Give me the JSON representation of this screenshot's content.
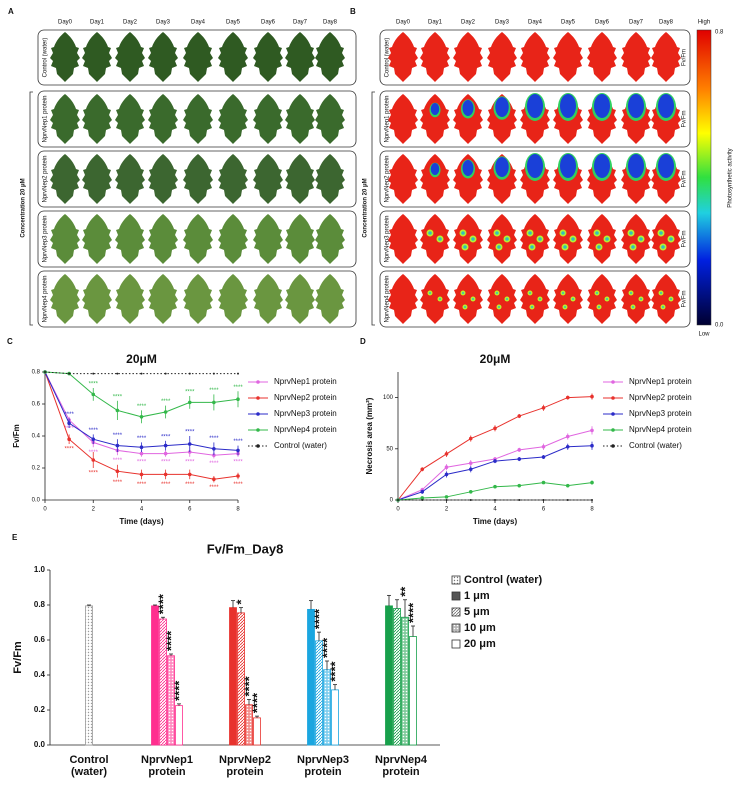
{
  "panels": {
    "A": {
      "label": "A",
      "days": [
        "Day0",
        "Day1",
        "Day2",
        "Day3",
        "Day4",
        "Day5",
        "Day6",
        "Day7",
        "Day8"
      ],
      "rows": [
        "Control (water)",
        "NprvNep1 protein",
        "NprvNep2 protein",
        "NprvNep3 protein",
        "NprvNep4 protein"
      ],
      "concentration": "Concentration 20 μM"
    },
    "B": {
      "label": "B",
      "days": [
        "Day0",
        "Day1",
        "Day2",
        "Day3",
        "Day4",
        "Day5",
        "Day6",
        "Day7",
        "Day8"
      ],
      "rows": [
        "Control (water)",
        "NprvNep1 protein",
        "NprvNep2 protein",
        "NprvNep3 protein",
        "NprvNep4 protein"
      ],
      "concentration": "Concentration 20 μM",
      "row_label": "Fv/Fm",
      "colorbar": {
        "high": "High",
        "max": "0.8",
        "min": "0.0",
        "low": "Low",
        "label": "Photosynthetic activity"
      }
    }
  },
  "chart_data": [
    {
      "type": "line",
      "panel": "C",
      "title": "20μM",
      "xlabel": "Time (days)",
      "ylabel": "Fv/Fm",
      "x": [
        0,
        1,
        2,
        3,
        4,
        5,
        6,
        7,
        8
      ],
      "xlim": [
        0,
        8
      ],
      "xticks": [
        0,
        2,
        4,
        6,
        8
      ],
      "ylim": [
        0,
        0.8
      ],
      "yticks": [
        {
          "value": 0,
          "label": "0.0"
        },
        0.2,
        0.4,
        0.6,
        0.8
      ],
      "series": [
        {
          "name": "NprvNep1 protein",
          "color": "#e066e0",
          "values": [
            0.8,
            0.5,
            0.36,
            0.31,
            0.29,
            0.29,
            0.3,
            0.28,
            0.29
          ],
          "errors": [
            0,
            0.02,
            0.03,
            0.03,
            0.02,
            0.02,
            0.03,
            0.02,
            0.02
          ],
          "labels": [
            null,
            "****",
            "****",
            "****",
            "****",
            "****",
            "****",
            "****",
            "****"
          ]
        },
        {
          "name": "NprvNep2 protein",
          "color": "#e8322d",
          "values": [
            0.8,
            0.38,
            0.25,
            0.18,
            0.16,
            0.16,
            0.16,
            0.13,
            0.15
          ],
          "errors": [
            0,
            0.03,
            0.05,
            0.04,
            0.03,
            0.03,
            0.03,
            0.02,
            0.02
          ],
          "labels": [
            null,
            "****",
            "****",
            "****",
            "****",
            "****",
            "****",
            "****",
            "****"
          ]
        },
        {
          "name": "NprvNep3 protein",
          "color": "#2b2bc8",
          "values": [
            0.8,
            0.48,
            0.38,
            0.34,
            0.33,
            0.34,
            0.35,
            0.32,
            0.31
          ],
          "errors": [
            0,
            0.03,
            0.03,
            0.04,
            0.03,
            0.03,
            0.05,
            0.04,
            0.03
          ],
          "labels": [
            null,
            "****",
            "****",
            "****",
            "****",
            "****",
            "****",
            "****",
            "****"
          ]
        },
        {
          "name": "NprvNep4 protein",
          "color": "#33b84a",
          "values": [
            0.8,
            0.79,
            0.66,
            0.56,
            0.52,
            0.55,
            0.61,
            0.61,
            0.63
          ],
          "errors": [
            0,
            0.01,
            0.04,
            0.06,
            0.04,
            0.04,
            0.04,
            0.05,
            0.05
          ],
          "labels": [
            null,
            null,
            "****",
            "****",
            "****",
            "****",
            "****",
            "****",
            "****"
          ]
        },
        {
          "name": "Control (water)",
          "color": "#222222",
          "line_style": "dotted",
          "values": [
            0.8,
            0.79,
            0.79,
            0.79,
            0.79,
            0.79,
            0.79,
            0.79,
            0.79
          ],
          "errors": [
            0,
            0,
            0,
            0,
            0,
            0,
            0,
            0,
            0
          ],
          "labels": [
            null,
            null,
            null,
            null,
            null,
            null,
            null,
            null,
            null
          ]
        }
      ]
    },
    {
      "type": "line",
      "panel": "D",
      "title": "20μM",
      "xlabel": "Time (days)",
      "ylabel": "Necrosis area (mm²)",
      "x": [
        0,
        1,
        2,
        3,
        4,
        5,
        6,
        7,
        8
      ],
      "xlim": [
        0,
        8
      ],
      "xticks": [
        0,
        2,
        4,
        6,
        8
      ],
      "ylim": [
        0,
        125
      ],
      "yticks": [
        0,
        50,
        100
      ],
      "series": [
        {
          "name": "NprvNep1 protein",
          "color": "#e066e0",
          "values": [
            0,
            10,
            32,
            36,
            40,
            49,
            52,
            62,
            68
          ],
          "errors": [
            0,
            2,
            3,
            3,
            2,
            2,
            3,
            3,
            4
          ]
        },
        {
          "name": "NprvNep2 protein",
          "color": "#e8322d",
          "values": [
            0,
            30,
            45,
            60,
            70,
            82,
            90,
            100,
            101
          ],
          "errors": [
            0,
            2,
            3,
            3,
            3,
            2,
            3,
            2,
            3
          ]
        },
        {
          "name": "NprvNep3 protein",
          "color": "#2b2bc8",
          "values": [
            0,
            8,
            25,
            30,
            38,
            40,
            42,
            52,
            53
          ],
          "errors": [
            0,
            2,
            3,
            3,
            2,
            2,
            2,
            3,
            4
          ]
        },
        {
          "name": "NprvNep4 protein",
          "color": "#33b84a",
          "values": [
            0,
            2,
            3,
            8,
            13,
            14,
            17,
            14,
            17
          ],
          "errors": [
            0,
            1,
            1,
            1,
            1,
            1,
            1,
            1,
            2
          ]
        },
        {
          "name": "Control (water)",
          "color": "#222222",
          "line_style": "dotted",
          "values": [
            0,
            0,
            0,
            0,
            0,
            0,
            0,
            0,
            0
          ],
          "errors": [
            0,
            0,
            0,
            0,
            0,
            0,
            0,
            0,
            0
          ]
        }
      ]
    },
    {
      "type": "bar",
      "panel": "E",
      "title": "Fv/Fm_Day8",
      "ylabel": "Fv/Fm",
      "categories": [
        [
          "Control",
          "(water)"
        ],
        [
          "NprvNep1",
          "protein"
        ],
        [
          "NprvNep2",
          "protein"
        ],
        [
          "NprvNep3",
          "protein"
        ],
        [
          "NprvNep4",
          "protein"
        ]
      ],
      "category_colors": [
        "#9a9a9a",
        "#ff2f8f",
        "#e8322d",
        "#1aa6e0",
        "#17a04b"
      ],
      "ylim": [
        0,
        1
      ],
      "yticks": [
        {
          "value": 0,
          "label": "0.0"
        },
        0.2,
        0.4,
        0.6,
        0.8,
        {
          "value": 1,
          "label": "1.0"
        }
      ],
      "series": [
        {
          "name": "Control (water)",
          "color": "#777777",
          "pattern": "dots",
          "values": [
            0.795,
            null,
            null,
            null,
            null
          ],
          "errors": [
            0.005,
            null,
            null,
            null,
            null
          ],
          "labels": [
            null,
            null,
            null,
            null,
            null
          ]
        },
        {
          "name": "1 μm",
          "color": "#555555",
          "pattern": "solid",
          "values": [
            null,
            0.795,
            0.785,
            0.775,
            0.795
          ],
          "errors": [
            null,
            0.005,
            0.04,
            0.05,
            0.06
          ],
          "labels": [
            null,
            null,
            null,
            null,
            null
          ]
        },
        {
          "name": "5 μm",
          "color": "#777777",
          "pattern": "hatch",
          "values": [
            null,
            0.72,
            0.755,
            0.595,
            0.78
          ],
          "errors": [
            null,
            0.01,
            0.03,
            0.05,
            0.05
          ],
          "labels": [
            null,
            "****",
            "*",
            "****",
            null
          ]
        },
        {
          "name": "10 μm",
          "color": "#777777",
          "pattern": "grid",
          "values": [
            null,
            0.51,
            0.23,
            0.43,
            0.73
          ],
          "errors": [
            null,
            0.01,
            0.03,
            0.05,
            0.1
          ],
          "labels": [
            null,
            "****",
            "****",
            "****",
            "**"
          ]
        },
        {
          "name": "20 μm",
          "color": "#777777",
          "pattern": "none",
          "values": [
            null,
            0.225,
            0.155,
            0.315,
            0.62
          ],
          "errors": [
            null,
            0.01,
            0.01,
            0.03,
            0.06
          ],
          "labels": [
            null,
            "****",
            "****",
            "****",
            "****"
          ]
        }
      ]
    }
  ]
}
